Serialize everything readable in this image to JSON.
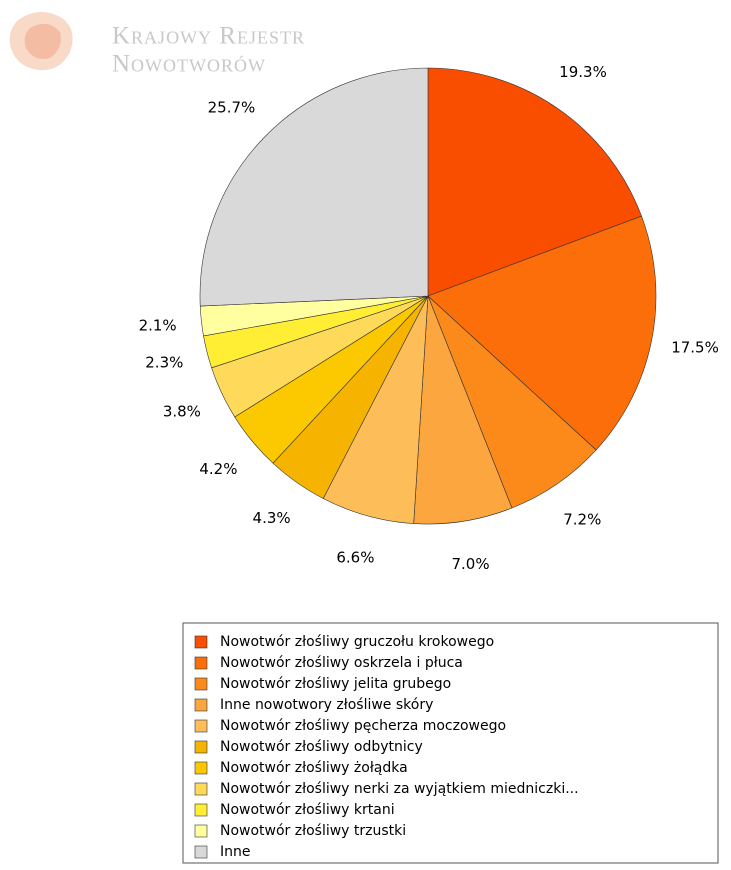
{
  "logo": [
    "Krajowy Rejestr",
    "Nowotworów"
  ],
  "chart_data": {
    "type": "pie",
    "categories": [
      "Nowotwór złośliwy gruczołu krokowego",
      "Nowotwór złośliwy oskrzela i płuca",
      "Nowotwór złośliwy jelita grubego",
      "Inne nowotwory złośliwe skóry",
      "Nowotwór złośliwy pęcherza moczowego",
      "Nowotwór złośliwy odbytnicy",
      "Nowotwór złośliwy żołądka",
      "Nowotwór złośliwy nerki za wyjątkiem miedniczki...",
      "Nowotwór złośliwy krtani",
      "Nowotwór złośliwy trzustki",
      "Inne"
    ],
    "values": [
      19.3,
      17.5,
      7.2,
      7.0,
      6.6,
      4.3,
      4.2,
      3.8,
      2.3,
      2.1,
      25.7
    ],
    "value_labels": [
      "19.3%",
      "17.5%",
      "7.2%",
      "7.0%",
      "6.6%",
      "4.3%",
      "4.2%",
      "3.8%",
      "2.3%",
      "2.1%",
      "25.7%"
    ],
    "colors": [
      "#f94d00",
      "#fb6e0a",
      "#fb8a1a",
      "#fba63e",
      "#fdbd58",
      "#f6b400",
      "#fcc800",
      "#fed95a",
      "#ffee33",
      "#ffffa0",
      "#d9d9d9"
    ],
    "legend": "bottom"
  }
}
